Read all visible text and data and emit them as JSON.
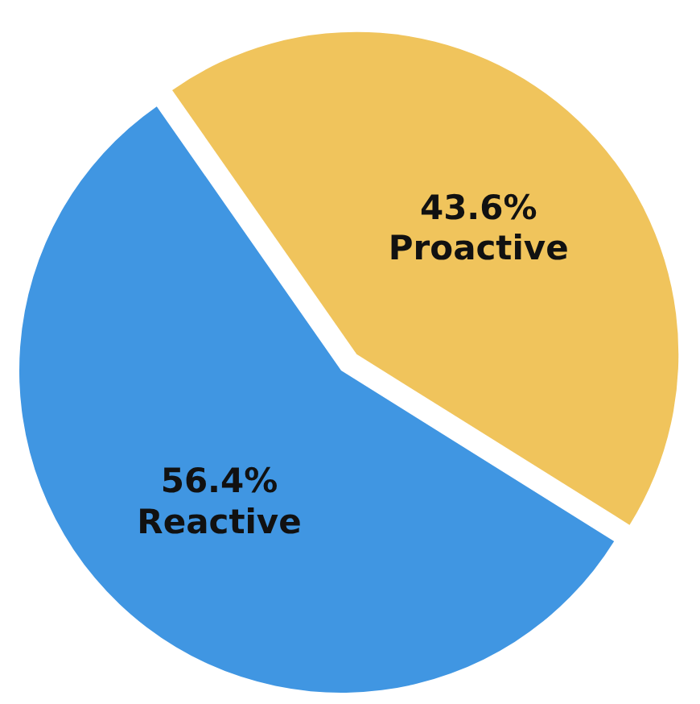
{
  "chart_data": {
    "type": "pie",
    "categories": [
      "Reactive",
      "Proactive"
    ],
    "values": [
      56.4,
      43.6
    ],
    "value_labels": [
      "56.4%",
      "43.6%"
    ],
    "colors": [
      "#4096e2",
      "#f0c45c"
    ],
    "legend": false
  }
}
